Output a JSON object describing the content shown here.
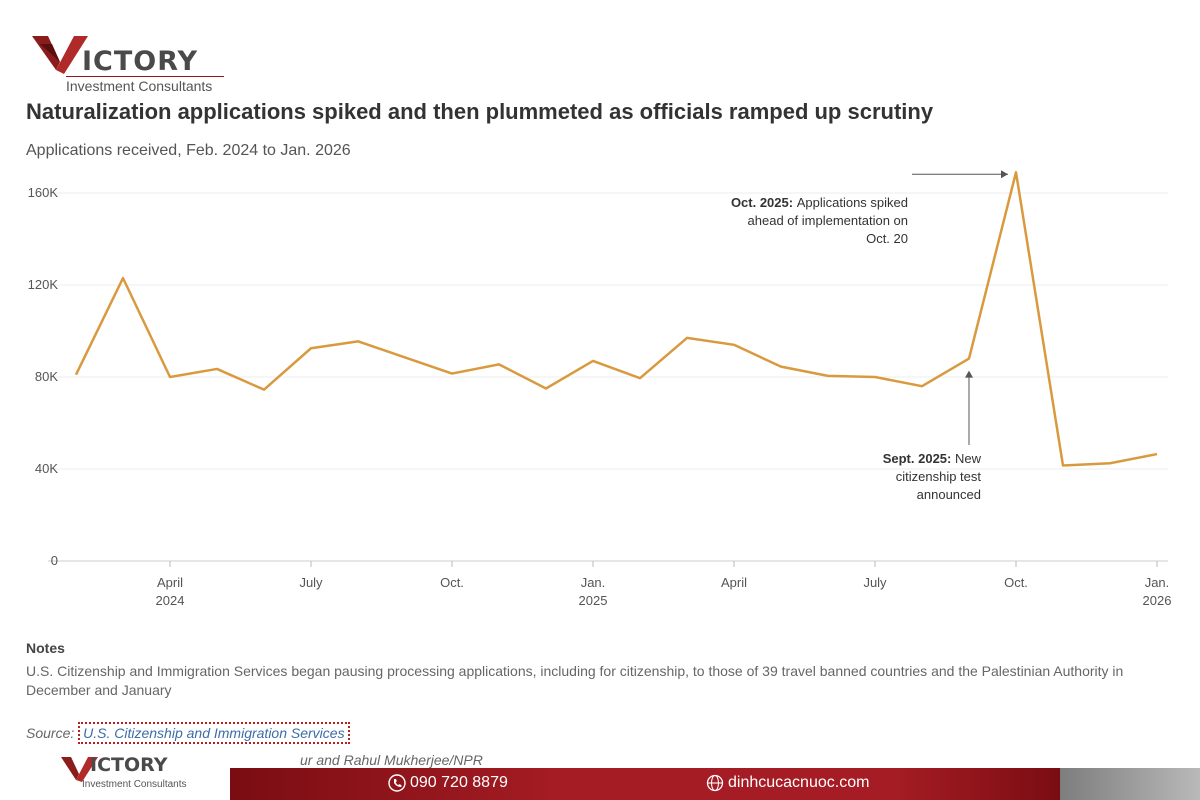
{
  "brand": {
    "name": "ICTORY",
    "tagline": "Investment Consultants",
    "accent_color": "#8a1c1c"
  },
  "chart_data": {
    "type": "line",
    "title": "Naturalization applications spiked and then plummeted as officials ramped up scrutiny",
    "subtitle": "Applications received, Feb. 2024 to Jan. 2026",
    "xlabel": "",
    "ylabel": "",
    "ylim": [
      0,
      170000
    ],
    "y_ticks": [
      {
        "value": 0,
        "label": "0"
      },
      {
        "value": 40000,
        "label": "40K"
      },
      {
        "value": 80000,
        "label": "80K"
      },
      {
        "value": 120000,
        "label": "120K"
      },
      {
        "value": 160000,
        "label": "160K"
      }
    ],
    "x_ticks": [
      {
        "index": 2,
        "line1": "April",
        "line2": "2024"
      },
      {
        "index": 5,
        "line1": "July",
        "line2": ""
      },
      {
        "index": 8,
        "line1": "Oct.",
        "line2": ""
      },
      {
        "index": 11,
        "line1": "Jan.",
        "line2": "2025"
      },
      {
        "index": 14,
        "line1": "April",
        "line2": ""
      },
      {
        "index": 17,
        "line1": "July",
        "line2": ""
      },
      {
        "index": 20,
        "line1": "Oct.",
        "line2": ""
      },
      {
        "index": 23,
        "line1": "Jan.",
        "line2": "2026"
      }
    ],
    "categories": [
      "Feb 2024",
      "Mar 2024",
      "Apr 2024",
      "May 2024",
      "Jun 2024",
      "Jul 2024",
      "Aug 2024",
      "Sep 2024",
      "Oct 2024",
      "Nov 2024",
      "Dec 2024",
      "Jan 2025",
      "Feb 2025",
      "Mar 2025",
      "Apr 2025",
      "May 2025",
      "Jun 2025",
      "Jul 2025",
      "Aug 2025",
      "Sep 2025",
      "Oct 2025",
      "Nov 2025",
      "Dec 2025",
      "Jan 2026"
    ],
    "series": [
      {
        "name": "Applications received",
        "color": "#d99a3f",
        "values": [
          81000,
          123000,
          80000,
          83500,
          74500,
          92500,
          95500,
          88500,
          81500,
          85500,
          75000,
          87000,
          79500,
          97000,
          94000,
          84500,
          80500,
          80000,
          76000,
          88000,
          169000,
          41500,
          42500,
          46500
        ]
      }
    ],
    "annotations": [
      {
        "target_index": 20,
        "bold": "Oct. 2025:",
        "lines": [
          "Applications spiked",
          "ahead of implementation on",
          "Oct. 20"
        ]
      },
      {
        "target_index": 19,
        "bold": "Sept. 2025:",
        "lines": [
          "New",
          "citizenship test",
          "announced"
        ]
      }
    ]
  },
  "notes": {
    "heading": "Notes",
    "body": "U.S. Citizenship and Immigration Services began pausing processing applications, including for citizenship, to those of 39 travel banned countries and the Palestinian Authority in December and January"
  },
  "source": {
    "label": "Source:",
    "link_text": "U.S. Citizenship and Immigration Services"
  },
  "credit": "ur and Rahul Mukherjee/NPR",
  "footer": {
    "brand": "ICTORY",
    "tagline": "Investment Consultants",
    "phone": "090 720 8879",
    "website": "dinhcucacnuoc.com"
  }
}
